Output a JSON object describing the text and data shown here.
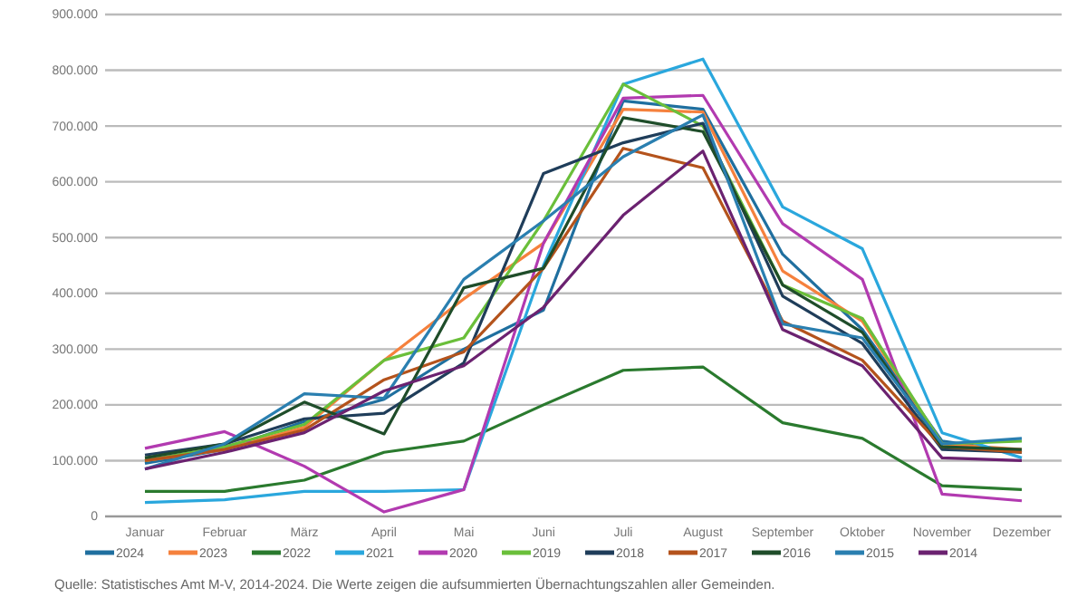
{
  "chart_data": {
    "type": "line",
    "categories": [
      "Januar",
      "Februar",
      "März",
      "April",
      "Mai",
      "Juni",
      "Juli",
      "August",
      "September",
      "Oktober",
      "November",
      "Dezember"
    ],
    "series": [
      {
        "name": "2024",
        "color": "#1f6f9f",
        "values": [
          95000,
          120000,
          170000,
          210000,
          300000,
          370000,
          745000,
          730000,
          470000,
          335000,
          135000,
          115000
        ]
      },
      {
        "name": "2023",
        "color": "#f5813d",
        "values": [
          100000,
          120000,
          160000,
          280000,
          390000,
          490000,
          730000,
          725000,
          440000,
          350000,
          130000,
          120000
        ]
      },
      {
        "name": "2022",
        "color": "#2a7a2e",
        "values": [
          45000,
          45000,
          65000,
          115000,
          135000,
          200000,
          262000,
          268000,
          168000,
          140000,
          55000,
          48000
        ]
      },
      {
        "name": "2021",
        "color": "#2aa7dd",
        "values": [
          25000,
          30000,
          45000,
          45000,
          48000,
          450000,
          775000,
          820000,
          555000,
          480000,
          150000,
          105000
        ]
      },
      {
        "name": "2020",
        "color": "#b23ab0",
        "values": [
          122000,
          152000,
          90000,
          8000,
          48000,
          490000,
          750000,
          755000,
          525000,
          425000,
          40000,
          28000
        ]
      },
      {
        "name": "2019",
        "color": "#6abf3a",
        "values": [
          100000,
          125000,
          165000,
          280000,
          320000,
          530000,
          775000,
          700000,
          415000,
          355000,
          130000,
          135000
        ]
      },
      {
        "name": "2018",
        "color": "#1f3d5a",
        "values": [
          110000,
          130000,
          175000,
          185000,
          275000,
          615000,
          670000,
          705000,
          395000,
          310000,
          120000,
          115000
        ]
      },
      {
        "name": "2017",
        "color": "#b4531c",
        "values": [
          100000,
          120000,
          155000,
          245000,
          295000,
          445000,
          660000,
          625000,
          350000,
          280000,
          125000,
          115000
        ]
      },
      {
        "name": "2016",
        "color": "#1f4d2a",
        "values": [
          105000,
          130000,
          205000,
          148000,
          410000,
          445000,
          715000,
          690000,
          415000,
          330000,
          125000,
          120000
        ]
      },
      {
        "name": "2015",
        "color": "#2a7fb0",
        "values": [
          85000,
          130000,
          220000,
          212000,
          425000,
          530000,
          645000,
          720000,
          345000,
          320000,
          130000,
          140000
        ]
      },
      {
        "name": "2014",
        "color": "#6b2270",
        "values": [
          85000,
          115000,
          150000,
          225000,
          270000,
          375000,
          540000,
          655000,
          335000,
          270000,
          105000,
          100000
        ]
      }
    ],
    "ylim": [
      0,
      900000
    ],
    "yticks": [
      0,
      {
        "value": 100000,
        "label": "100.000"
      },
      {
        "value": 200000,
        "label": "200.000"
      },
      {
        "value": 300000,
        "label": "300.000"
      },
      {
        "value": 400000,
        "label": "400.000"
      },
      {
        "value": 500000,
        "label": "500.000"
      },
      {
        "value": 600000,
        "label": "600.000"
      },
      {
        "value": 700000,
        "label": "700.000"
      },
      {
        "value": 800000,
        "label": "800.000"
      },
      {
        "value": 900000,
        "label": "900.000"
      }
    ],
    "grid": "y",
    "legend": "bottom",
    "marker": "none",
    "line_style": "solid",
    "annotations": [
      "Quelle: Statistisches Amt M-V, 2014-2024. Die Werte zeigen die aufsummierten Übernachtungszahlen aller Gemeinden."
    ]
  }
}
